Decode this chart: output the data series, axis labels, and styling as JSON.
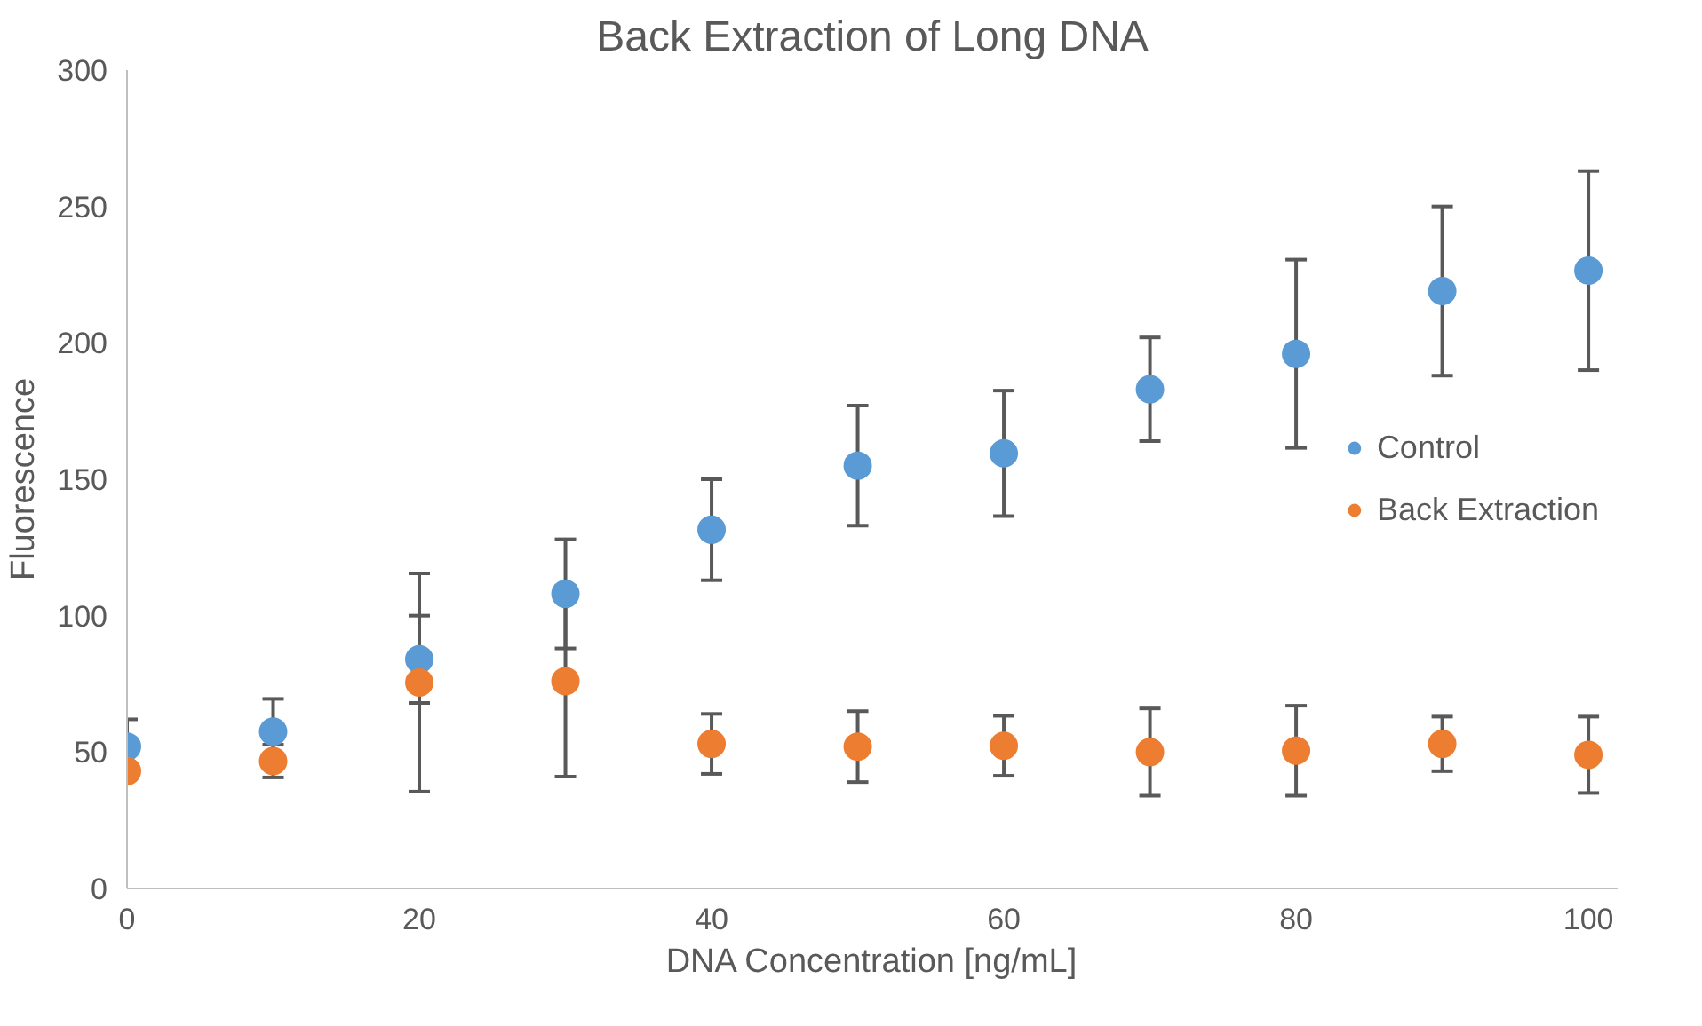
{
  "chart_data": {
    "type": "scatter",
    "title": "Back Extraction of Long DNA",
    "xlabel": "DNA Concentration [ng/mL]",
    "ylabel": "Fluorescence",
    "x": [
      0,
      10,
      20,
      30,
      40,
      50,
      60,
      70,
      80,
      90,
      100
    ],
    "series": [
      {
        "name": "Control",
        "color": "#5b9bd5",
        "values": [
          52,
          57.5,
          84,
          108,
          131.5,
          155,
          159.5,
          183,
          196,
          219,
          226.5
        ],
        "errors": [
          10,
          12,
          16,
          20,
          18.5,
          22,
          23,
          19,
          34.5,
          31,
          36.5
        ]
      },
      {
        "name": "Back Extraction",
        "color": "#ed7d31",
        "values": [
          43,
          46.7,
          75.5,
          76,
          53,
          52,
          52.3,
          50,
          50.5,
          53,
          49
        ],
        "errors": [
          null,
          6,
          40,
          35,
          11,
          13,
          11,
          16,
          16.5,
          10,
          14
        ]
      }
    ],
    "xlim": [
      0,
      102
    ],
    "ylim": [
      0,
      300
    ],
    "xticks": [
      0,
      20,
      40,
      60,
      80,
      100
    ],
    "yticks": [
      0,
      50,
      100,
      150,
      200,
      250,
      300
    ],
    "grid": false,
    "legend": "right",
    "marker": "circle"
  }
}
